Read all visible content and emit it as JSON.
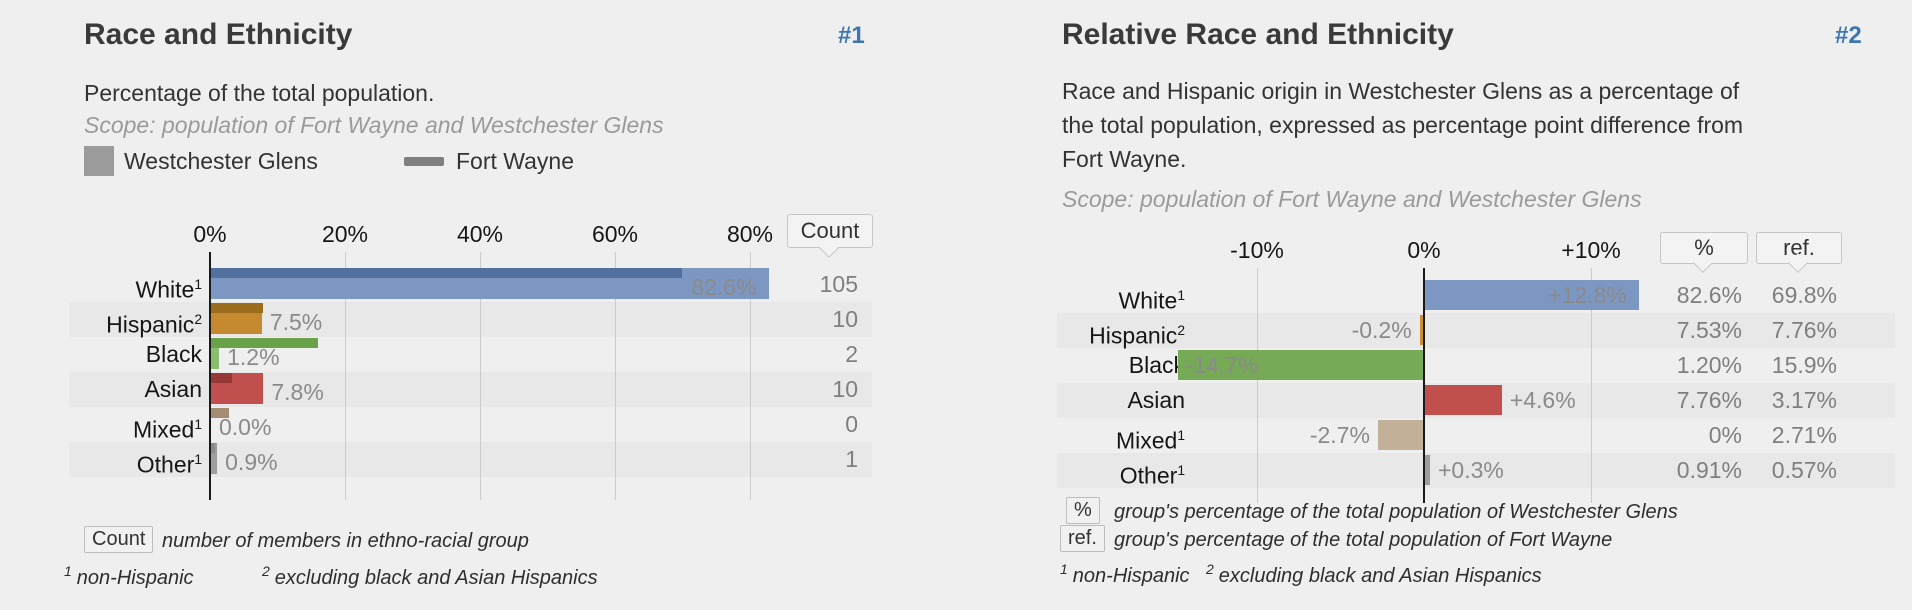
{
  "page": {
    "background_color": "#efefef",
    "accent_link_color": "#3d77b0"
  },
  "chart_data": [
    {
      "type": "bar",
      "orientation": "horizontal",
      "title": "Race and Ethnicity",
      "subtitle": "Percentage of the total population.",
      "scope": "Scope: population of Fort Wayne and Westchester Glens",
      "anchor": "#1",
      "categories": [
        "White¹",
        "Hispanic²",
        "Black",
        "Asian",
        "Mixed¹",
        "Other¹"
      ],
      "series": [
        {
          "name": "Westchester Glens",
          "values": [
            82.6,
            7.53,
            1.2,
            7.76,
            0,
            0.91
          ],
          "value_labels": [
            "82.6%",
            "7.5%",
            "1.2%",
            "7.8%",
            "0.0%",
            "0.9%"
          ]
        },
        {
          "name": "Fort Wayne",
          "values": [
            69.8,
            7.76,
            15.9,
            3.17,
            2.71,
            0.57
          ]
        }
      ],
      "count_column": {
        "header": "Count",
        "values": [
          105,
          10,
          2,
          10,
          0,
          1
        ]
      },
      "xlabel": "",
      "ylabel": "",
      "xticks": [
        "0%",
        "20%",
        "40%",
        "60%",
        "80%"
      ],
      "xlim": [
        0,
        90
      ],
      "grid": true,
      "legend_position": "top"
    },
    {
      "type": "bar",
      "orientation": "horizontal",
      "title": "Relative Race and Ethnicity",
      "subtitle": "Race and Hispanic origin in Westchester Glens as a percentage of the total population, expressed as percentage point difference from Fort Wayne.",
      "scope": "Scope: population of Fort Wayne and Westchester Glens",
      "anchor": "#2",
      "categories": [
        "White¹",
        "Hispanic²",
        "Black",
        "Asian",
        "Mixed¹",
        "Other¹"
      ],
      "values": [
        12.8,
        -0.2,
        -14.7,
        4.6,
        -2.7,
        0.3
      ],
      "value_labels": [
        "+12.8%",
        "-0.2%",
        "-14.7%",
        "+4.6%",
        "-2.7%",
        "+0.3%"
      ],
      "pct_column": {
        "header": "%",
        "values": [
          "82.6%",
          "7.53%",
          "1.20%",
          "7.76%",
          "0%",
          "0.91%"
        ]
      },
      "ref_column": {
        "header": "ref.",
        "values": [
          "69.8%",
          "7.76%",
          "15.9%",
          "3.17%",
          "2.71%",
          "0.57%"
        ]
      },
      "xticks": [
        "-10%",
        "0%",
        "+10%"
      ],
      "xlim": [
        -22,
        13
      ],
      "grid": true
    }
  ],
  "left_chart": {
    "title": "Race and Ethnicity",
    "anchor": "#1",
    "subtitle": "Percentage of the total population.",
    "scope": "Scope: population of Fort Wayne and Westchester Glens",
    "legend": [
      {
        "label": "Westchester Glens",
        "swatch": "square",
        "color": "#9b9b9b"
      },
      {
        "label": "Fort Wayne",
        "swatch": "dash",
        "color": "#7f7f7f"
      }
    ],
    "axis_ticks": [
      {
        "label": "0%",
        "value": 0
      },
      {
        "label": "20%",
        "value": 20
      },
      {
        "label": "40%",
        "value": 40
      },
      {
        "label": "60%",
        "value": 60
      },
      {
        "label": "80%",
        "value": 80
      }
    ],
    "count_header": "Count",
    "rows": [
      {
        "label": "White",
        "sup": "1",
        "value": 82.6,
        "value_label": "82.6%",
        "label_inside": true,
        "count": "105",
        "ref_value": 69.8,
        "bar_color": "#7d97c3",
        "ref_bar_color": "#53719f"
      },
      {
        "label": "Hispanic",
        "sup": "2",
        "value": 7.53,
        "value_label": "7.5%",
        "label_inside": false,
        "count": "10",
        "ref_value": 7.76,
        "bar_color": "#c5892f",
        "ref_bar_color": "#9b6c1c"
      },
      {
        "label": "Black",
        "sup": "",
        "value": 1.2,
        "value_label": "1.2%",
        "label_inside": false,
        "count": "2",
        "ref_value": 15.9,
        "bar_color": "#8cbd6e",
        "ref_bar_color": "#69a24a"
      },
      {
        "label": "Asian",
        "sup": "",
        "value": 7.76,
        "value_label": "7.8%",
        "label_inside": false,
        "count": "10",
        "ref_value": 3.17,
        "bar_color": "#c14f4d",
        "ref_bar_color": "#953936"
      },
      {
        "label": "Mixed",
        "sup": "1",
        "value": 0,
        "value_label": "0.0%",
        "label_inside": false,
        "count": "0",
        "ref_value": 2.71,
        "bar_color": "#c0ae93",
        "ref_bar_color": "#a28d72"
      },
      {
        "label": "Other",
        "sup": "1",
        "value": 0.91,
        "value_label": "0.9%",
        "label_inside": false,
        "count": "1",
        "ref_value": 0.57,
        "bar_color": "#9e9e9e",
        "ref_bar_color": "#8b8b8b"
      }
    ],
    "footer": {
      "count_key": "Count",
      "count_note": "number of members in ethno-racial group",
      "footnote1_sup": "1",
      "footnote1": "non-Hispanic",
      "footnote2_sup": "2",
      "footnote2": "excluding black and Asian Hispanics"
    }
  },
  "right_chart": {
    "title": "Relative Race and Ethnicity",
    "anchor": "#2",
    "description_lines": [
      "Race and Hispanic origin in Westchester Glens as a percentage of",
      "the total population, expressed as percentage point difference from",
      "Fort Wayne."
    ],
    "scope": "Scope: population of Fort Wayne and Westchester Glens",
    "axis_ticks": [
      {
        "label": "-10%",
        "value": -10
      },
      {
        "label": "0%",
        "value": 0
      },
      {
        "label": "+10%",
        "value": 10
      }
    ],
    "col_headers": {
      "pct": "%",
      "ref": "ref."
    },
    "rows": [
      {
        "label": "White",
        "sup": "1",
        "value": 12.8,
        "value_label": "+12.8%",
        "label_pos": "inside-right",
        "bar_color": "#7d97c3",
        "pct": "82.6%",
        "ref": "69.8%"
      },
      {
        "label": "Hispanic",
        "sup": "2",
        "value": -0.2,
        "value_label": "-0.2%",
        "label_pos": "outside-left",
        "bar_color": "#cf8f2e",
        "pct": "7.53%",
        "ref": "7.76%"
      },
      {
        "label": "Black",
        "sup": "",
        "value": -14.7,
        "value_label": "-14.7%",
        "label_pos": "inside-left",
        "bar_color": "#76aa57",
        "pct": "1.20%",
        "ref": "15.9%"
      },
      {
        "label": "Asian",
        "sup": "",
        "value": 4.6,
        "value_label": "+4.6%",
        "label_pos": "outside-right",
        "bar_color": "#c14f4d",
        "pct": "7.76%",
        "ref": "3.17%"
      },
      {
        "label": "Mixed",
        "sup": "1",
        "value": -2.7,
        "value_label": "-2.7%",
        "label_pos": "outside-left",
        "bar_color": "#c2b098",
        "pct": "0%",
        "ref": "2.71%"
      },
      {
        "label": "Other",
        "sup": "1",
        "value": 0.3,
        "value_label": "+0.3%",
        "label_pos": "outside-right",
        "bar_color": "#9e9e9e",
        "pct": "0.91%",
        "ref": "0.57%"
      }
    ],
    "footer": {
      "pct_key": "%",
      "pct_note": "group's percentage of the total population of Westchester Glens",
      "ref_key": "ref.",
      "ref_note": "group's percentage of the total population of Fort Wayne",
      "footnote1_sup": "1",
      "footnote1": "non-Hispanic",
      "footnote2_sup": "2",
      "footnote2": "excluding black and Asian Hispanics"
    }
  }
}
